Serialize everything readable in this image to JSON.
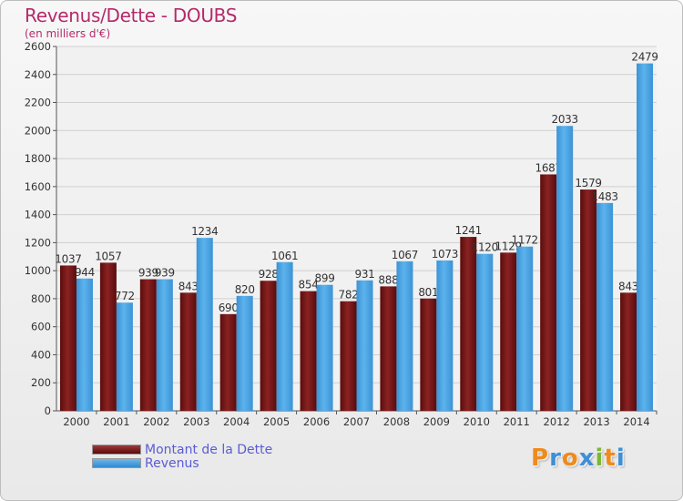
{
  "header": {
    "title": "Revenus/Dette - DOUBS",
    "subtitle": "(en milliers d'€)"
  },
  "chart_data": {
    "type": "bar",
    "categories": [
      "2000",
      "2001",
      "2002",
      "2003",
      "2004",
      "2005",
      "2006",
      "2007",
      "2008",
      "2009",
      "2010",
      "2011",
      "2012",
      "2013",
      "2014"
    ],
    "series": [
      {
        "name": "Montant de la Dette",
        "color": "#7a1818",
        "values": [
          1037,
          1057,
          939,
          843,
          690,
          928,
          854,
          782,
          888,
          801,
          1241,
          1129,
          1687,
          1579,
          843
        ]
      },
      {
        "name": "Revenus",
        "color": "#4aa3e3",
        "values": [
          944,
          772,
          939,
          1234,
          820,
          1061,
          899,
          931,
          1067,
          1073,
          1120,
          1172,
          2033,
          1483,
          2479
        ]
      }
    ],
    "value_labels": {
      "Montant de la Dette": [
        "1037",
        "1057",
        "939",
        "843",
        "690",
        "928",
        "854",
        "782",
        "888",
        "801",
        "1241",
        "1129",
        "1687",
        "1579",
        "843"
      ],
      "Revenus": [
        "944",
        "772",
        "939",
        "1234",
        "820",
        "1061",
        "899",
        "931",
        "1067",
        "1073",
        "1120",
        "1172",
        "2033",
        "1483",
        "2479"
      ]
    },
    "yticks": [
      0,
      200,
      400,
      600,
      800,
      1000,
      1200,
      1400,
      1600,
      1800,
      2000,
      2200,
      2400,
      2600
    ],
    "ylim": [
      0,
      2600
    ],
    "grid": true,
    "legend_position": "bottom-left"
  },
  "legend": {
    "items": [
      {
        "label": "Montant de la Dette"
      },
      {
        "label": "Revenus"
      }
    ]
  },
  "brand": {
    "logo_letters": [
      "P",
      "r",
      "o",
      "x",
      "i",
      "t",
      "i"
    ],
    "logo_colors": [
      "#f08a1c",
      "#3d8fd8",
      "#f08a1c",
      "#3d8fd8",
      "#7ab830",
      "#f08a1c",
      "#3d8fd8"
    ]
  }
}
